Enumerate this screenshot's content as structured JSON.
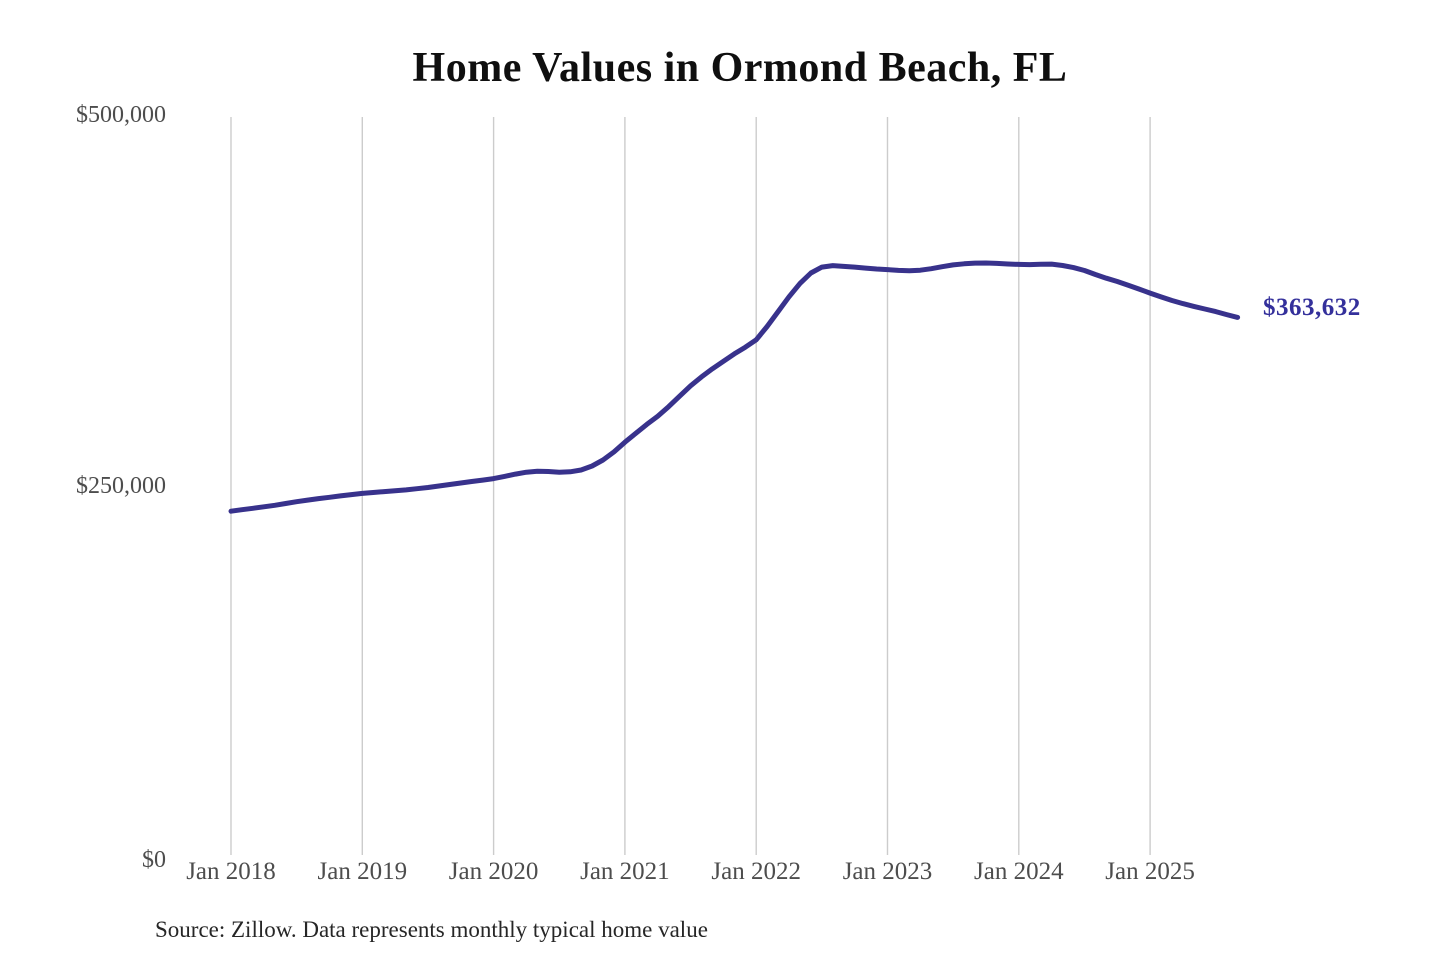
{
  "title": "Home Values in Ormond Beach, FL",
  "end_label": "$363,632",
  "source": "Source: Zillow. Data represents monthly typical home value",
  "colors": {
    "line": "#38328c",
    "grid": "#cccccc",
    "axis_text": "#4d4d4d",
    "title_text": "#0f0f0f",
    "end_label_text": "#34309b",
    "source_text": "#262626",
    "background": "#ffffff"
  },
  "chart_data": {
    "type": "line",
    "title": "Home Values in Ormond Beach, FL",
    "unit": "USD, monthly typical home value",
    "x_monthly_start": "2018-01",
    "x_monthly_end": "2025-09",
    "values": [
      233000,
      234000,
      235000,
      236000,
      237000,
      238200,
      239400,
      240500,
      241500,
      242400,
      243300,
      244200,
      245000,
      245600,
      246200,
      246800,
      247400,
      248200,
      249000,
      250000,
      251000,
      252000,
      253000,
      254000,
      255000,
      256500,
      258000,
      259300,
      260000,
      259800,
      259300,
      259600,
      260800,
      263500,
      267500,
      273000,
      279500,
      285500,
      291500,
      297000,
      303500,
      310500,
      317500,
      323500,
      329000,
      334000,
      339000,
      343500,
      348500,
      357500,
      367500,
      377500,
      386500,
      393500,
      397500,
      398500,
      398000,
      397500,
      396800,
      396200,
      395800,
      395300,
      395000,
      395400,
      396400,
      397800,
      399000,
      399700,
      400200,
      400300,
      400000,
      399600,
      399300,
      399200,
      399400,
      399500,
      398600,
      397200,
      395200,
      392500,
      390000,
      387800,
      385300,
      382700,
      380000,
      377400,
      375000,
      372900,
      371000,
      369300,
      367500,
      365500,
      363632
    ],
    "xtick_labels": [
      "Jan 2018",
      "Jan 2019",
      "Jan 2020",
      "Jan 2021",
      "Jan 2022",
      "Jan 2023",
      "Jan 2024",
      "Jan 2025"
    ],
    "ytick_labels": [
      {
        "label": "$500,000",
        "value": 500000
      },
      {
        "label": "$250,000",
        "value": 250000
      },
      {
        "label": "$0",
        "value": 0
      }
    ],
    "ylim": [
      0,
      500000
    ],
    "grid": "vertical-year-lines-only",
    "legend": "none",
    "end_label": "$363,632",
    "end_value": 363632,
    "source_note": "Source: Zillow. Data represents monthly typical home value"
  }
}
